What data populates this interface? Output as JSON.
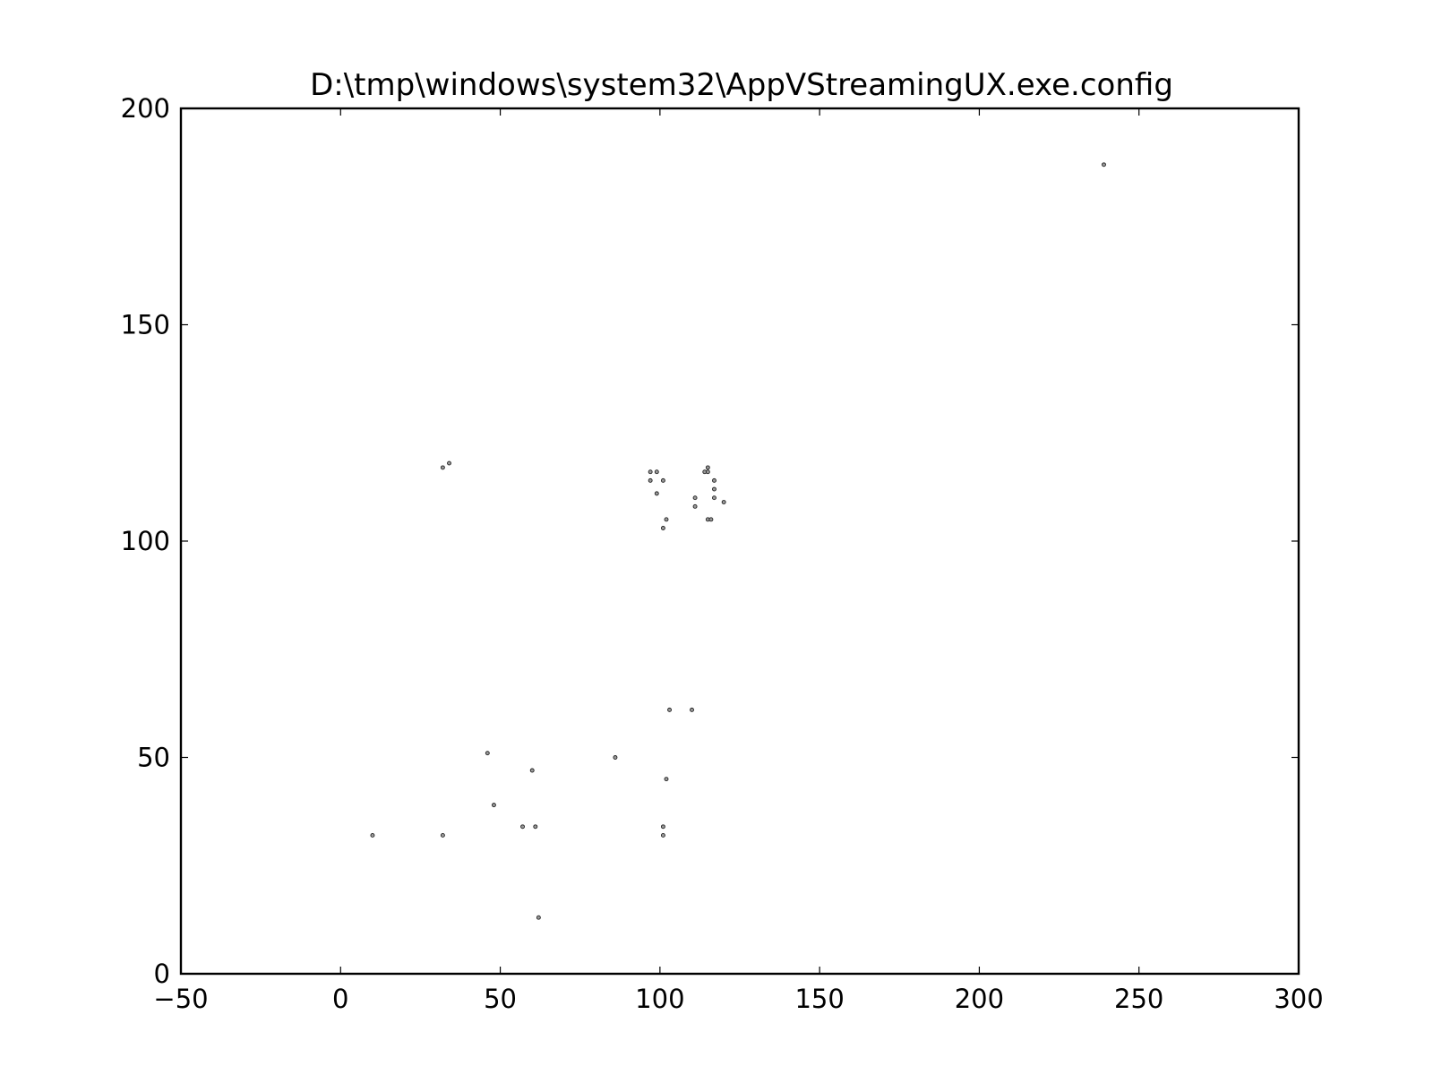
{
  "chart_data": {
    "type": "scatter",
    "title": "D:\\tmp\\windows\\system32\\AppVStreamingUX.exe.config",
    "xlabel": "",
    "ylabel": "",
    "xlim": [
      -50,
      300
    ],
    "ylim": [
      0,
      200
    ],
    "grid": false,
    "x_ticks": [
      -50,
      0,
      50,
      100,
      150,
      200,
      250,
      300
    ],
    "x_tick_labels": [
      "−50",
      "0",
      "50",
      "100",
      "150",
      "200",
      "250",
      "300"
    ],
    "y_ticks": [
      0,
      50,
      100,
      150,
      200
    ],
    "y_tick_labels": [
      "0",
      "50",
      "100",
      "150",
      "200"
    ],
    "colors": {
      "marker_fill": "#9a9a9a",
      "marker_edge": "#222222",
      "axes": "#000000"
    },
    "points": [
      {
        "x": 239,
        "y": 187
      },
      {
        "x": 32,
        "y": 117
      },
      {
        "x": 34,
        "y": 118
      },
      {
        "x": 97,
        "y": 116
      },
      {
        "x": 99,
        "y": 116
      },
      {
        "x": 97,
        "y": 114
      },
      {
        "x": 101,
        "y": 114
      },
      {
        "x": 99,
        "y": 111
      },
      {
        "x": 102,
        "y": 105
      },
      {
        "x": 101,
        "y": 103
      },
      {
        "x": 111,
        "y": 110
      },
      {
        "x": 111,
        "y": 108
      },
      {
        "x": 114,
        "y": 116
      },
      {
        "x": 115,
        "y": 116
      },
      {
        "x": 115,
        "y": 117
      },
      {
        "x": 117,
        "y": 114
      },
      {
        "x": 117,
        "y": 112
      },
      {
        "x": 117,
        "y": 110
      },
      {
        "x": 120,
        "y": 109
      },
      {
        "x": 115,
        "y": 105
      },
      {
        "x": 116,
        "y": 105
      },
      {
        "x": 103,
        "y": 61
      },
      {
        "x": 110,
        "y": 61
      },
      {
        "x": 46,
        "y": 51
      },
      {
        "x": 86,
        "y": 50
      },
      {
        "x": 60,
        "y": 47
      },
      {
        "x": 102,
        "y": 45
      },
      {
        "x": 48,
        "y": 39
      },
      {
        "x": 57,
        "y": 34
      },
      {
        "x": 61,
        "y": 34
      },
      {
        "x": 101,
        "y": 34
      },
      {
        "x": 101,
        "y": 32
      },
      {
        "x": 10,
        "y": 32
      },
      {
        "x": 32,
        "y": 32
      },
      {
        "x": 62,
        "y": 13
      }
    ]
  }
}
